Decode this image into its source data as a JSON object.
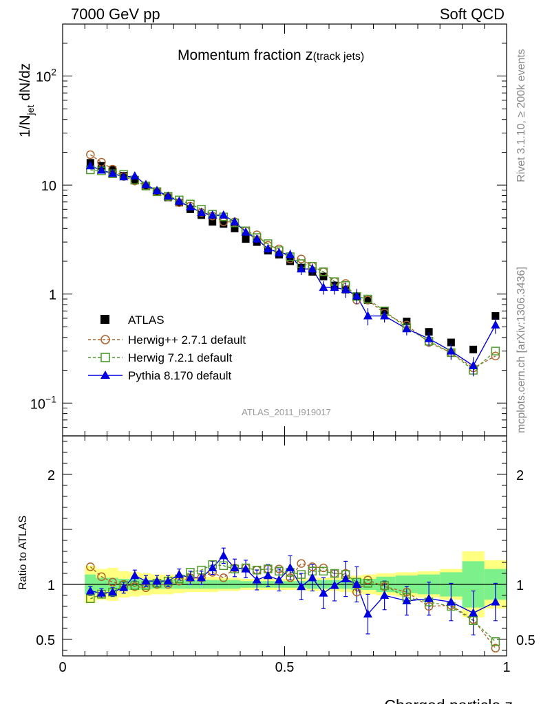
{
  "header": {
    "left": "7000 GeV pp",
    "right": "Soft QCD"
  },
  "side": {
    "rivet": "Rivet 3.1.10, ≥ 200k events",
    "mcplots": "mcplots.cern.ch [arXiv:1306.3436]"
  },
  "colors": {
    "data": "#000000",
    "herwigpp": "#b0632a",
    "herwig7": "#4c9a27",
    "pythia": "#0000e0",
    "band_inner": "#7cf08a",
    "band_outer": "#ffff80"
  },
  "chart_data": {
    "type": "scatter",
    "title": "Momentum fraction",
    "title_var": "z",
    "title_sub": "(track jets)",
    "xlabel": "Charged particle z",
    "ylabel_main": "1/N",
    "ylabel_sub": "jet",
    "ylabel_rest": " dN/dz",
    "ylabel_ratio": "Ratio to ATLAS",
    "analysis": "ATLAS_2011_I919017",
    "xlim": [
      0,
      1
    ],
    "ylim_main": [
      0.05,
      300
    ],
    "ylim_ratio": [
      0.35,
      2.35
    ],
    "x_ticks": [
      "0",
      "0.5",
      "1"
    ],
    "y_ticks_main": [
      {
        "base": "10",
        "exp": "−1"
      },
      {
        "base": "1",
        "exp": ""
      },
      {
        "base": "10",
        "exp": ""
      },
      {
        "base": "10",
        "exp": "2"
      }
    ],
    "y_ticks_ratio": [
      "0.5",
      "1",
      "2"
    ],
    "legend": [
      "ATLAS",
      "Herwig++ 2.7.1 default",
      "Herwig 7.2.1 default",
      "Pythia 8.170 default"
    ],
    "x": [
      0.0625,
      0.0875,
      0.1125,
      0.1375,
      0.1625,
      0.1875,
      0.2125,
      0.2375,
      0.2625,
      0.2875,
      0.3125,
      0.3375,
      0.3625,
      0.3875,
      0.4125,
      0.4375,
      0.4625,
      0.4875,
      0.5125,
      0.5375,
      0.5625,
      0.5875,
      0.6125,
      0.6375,
      0.6625,
      0.6875,
      0.725,
      0.775,
      0.825,
      0.875,
      0.925,
      0.975
    ],
    "atlas": [
      16.0,
      15.0,
      13.8,
      12.2,
      11.2,
      9.8,
      8.6,
      7.7,
      6.9,
      6.0,
      5.3,
      4.6,
      4.4,
      4.0,
      3.2,
      3.0,
      2.5,
      2.3,
      2.0,
      1.75,
      1.6,
      1.45,
      1.2,
      1.1,
      0.95,
      0.88,
      0.7,
      0.56,
      0.45,
      0.36,
      0.31,
      0.63
    ],
    "herwigpp": [
      19.0,
      16.2,
      14.0,
      12.0,
      10.9,
      9.8,
      8.7,
      7.8,
      6.9,
      6.4,
      5.6,
      5.2,
      4.6,
      4.6,
      3.8,
      3.5,
      2.8,
      2.6,
      2.1,
      2.1,
      1.8,
      1.6,
      1.3,
      1.25,
      0.88,
      0.88,
      0.67,
      0.52,
      0.36,
      0.29,
      0.21,
      0.27
    ],
    "herwig7": [
      13.8,
      13.5,
      12.7,
      12.5,
      11.1,
      9.8,
      8.7,
      7.9,
      7.3,
      6.7,
      6.0,
      5.4,
      5.1,
      4.5,
      3.8,
      3.3,
      2.9,
      2.5,
      2.2,
      1.9,
      1.8,
      1.6,
      1.3,
      1.2,
      0.95,
      0.9,
      0.7,
      0.49,
      0.37,
      0.29,
      0.2,
      0.3
    ],
    "pythia": [
      15.0,
      13.7,
      12.8,
      11.9,
      12.1,
      10.1,
      8.9,
      7.9,
      7.1,
      6.3,
      5.6,
      5.3,
      5.3,
      4.6,
      3.7,
      3.2,
      2.6,
      2.4,
      2.3,
      1.7,
      1.7,
      1.15,
      1.15,
      1.1,
      0.96,
      0.63,
      0.63,
      0.48,
      0.39,
      0.3,
      0.22,
      0.52
    ],
    "ratio_herwigpp": [
      1.16,
      1.07,
      1.02,
      1.0,
      0.98,
      0.97,
      1.0,
      1.0,
      1.03,
      1.06,
      1.06,
      1.11,
      1.06,
      1.15,
      1.15,
      1.13,
      1.14,
      1.14,
      1.06,
      1.19,
      1.16,
      1.15,
      1.1,
      1.1,
      0.93,
      1.04,
      0.98,
      0.93,
      0.8,
      0.81,
      0.68,
      0.42
    ],
    "ratio_herwig7": [
      0.87,
      0.91,
      0.93,
      0.99,
      0.99,
      0.99,
      1.01,
      1.03,
      1.05,
      1.11,
      1.13,
      1.18,
      1.17,
      1.14,
      1.15,
      1.13,
      1.14,
      1.12,
      1.11,
      1.09,
      1.12,
      1.12,
      1.1,
      1.09,
      1.02,
      1.01,
      0.99,
      0.88,
      0.84,
      0.8,
      0.67,
      0.48
    ],
    "ratio_pythia": [
      0.94,
      0.92,
      0.93,
      0.97,
      1.08,
      1.03,
      1.03,
      1.03,
      1.09,
      1.06,
      1.06,
      1.15,
      1.26,
      1.15,
      1.14,
      1.04,
      1.08,
      1.04,
      1.15,
      0.98,
      1.06,
      0.92,
      0.99,
      1.05,
      1.0,
      0.73,
      0.9,
      0.85,
      0.87,
      0.84,
      0.74,
      0.84
    ],
    "ratio_pythia_err": [
      0.04,
      0.04,
      0.04,
      0.05,
      0.05,
      0.05,
      0.05,
      0.05,
      0.05,
      0.06,
      0.06,
      0.06,
      0.07,
      0.08,
      0.08,
      0.09,
      0.1,
      0.1,
      0.11,
      0.12,
      0.12,
      0.14,
      0.14,
      0.16,
      0.16,
      0.18,
      0.13,
      0.13,
      0.15,
      0.17,
      0.2,
      0.17
    ],
    "band_inner": [
      0.09,
      0.06,
      0.06,
      0.05,
      0.05,
      0.04,
      0.04,
      0.04,
      0.04,
      0.04,
      0.04,
      0.04,
      0.04,
      0.04,
      0.03,
      0.03,
      0.03,
      0.03,
      0.03,
      0.03,
      0.04,
      0.04,
      0.04,
      0.04,
      0.05,
      0.05,
      0.07,
      0.08,
      0.09,
      0.11,
      0.21,
      0.14
    ],
    "band_outer": [
      0.17,
      0.14,
      0.15,
      0.12,
      0.11,
      0.1,
      0.09,
      0.09,
      0.08,
      0.07,
      0.07,
      0.07,
      0.06,
      0.06,
      0.05,
      0.05,
      0.05,
      0.05,
      0.05,
      0.05,
      0.06,
      0.06,
      0.06,
      0.07,
      0.08,
      0.09,
      0.1,
      0.11,
      0.12,
      0.14,
      0.3,
      0.22
    ]
  }
}
